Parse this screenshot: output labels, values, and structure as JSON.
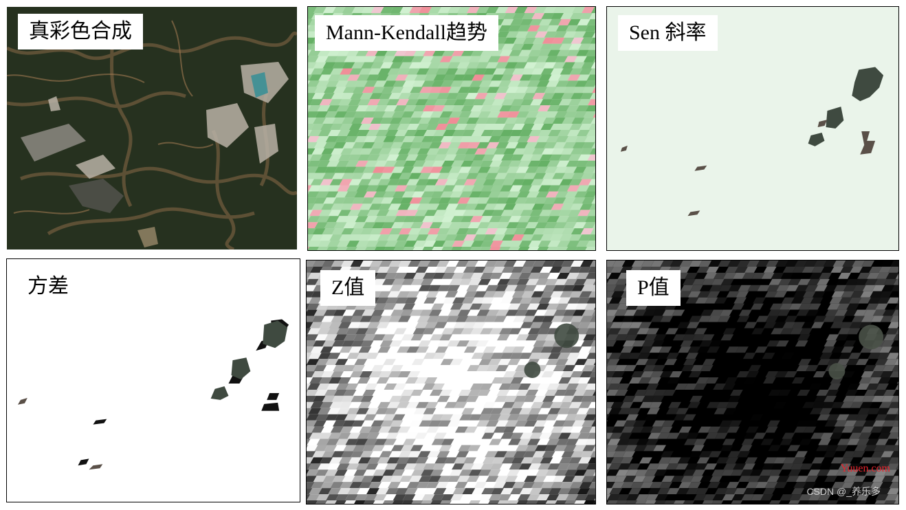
{
  "panels": [
    {
      "id": "true-color",
      "title": "真彩色合成"
    },
    {
      "id": "mann-kendall",
      "title": "Mann-Kendall趋势"
    },
    {
      "id": "sen-slope",
      "title": "Sen 斜率"
    },
    {
      "id": "variance",
      "title": "方差"
    },
    {
      "id": "z-value",
      "title": "Z值"
    },
    {
      "id": "p-value",
      "title": "P值"
    }
  ],
  "watermark": {
    "site": "Yuuen.com",
    "author": "CSDN @_养乐多"
  },
  "colors": {
    "forest": "#25301f",
    "bare": "#9a7450",
    "trend_up": "#2f8f2f",
    "trend_down": "#e26a6a",
    "sen_bg": "#eaf4ea",
    "blob": "#3f4a40",
    "z_bg": "#ffffff",
    "p_bg": "#050505"
  }
}
